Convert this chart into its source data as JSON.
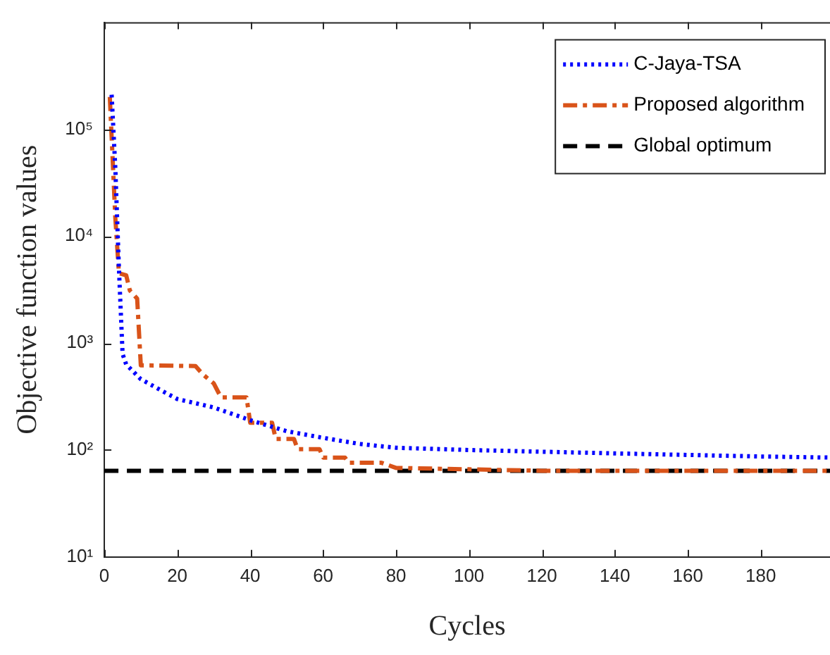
{
  "chart_data": {
    "type": "line",
    "xlabel": "Cycles",
    "ylabel": "Objective function values",
    "log": "y",
    "grid": false,
    "legend": "top right",
    "marker": "none",
    "xlim": [
      0,
      199
    ],
    "xticks": [
      0,
      20,
      40,
      60,
      80,
      100,
      120,
      140,
      160,
      180
    ],
    "ylim": [
      10,
      1000000
    ],
    "yticks": [
      {
        "value": 10,
        "label": "10¹"
      },
      {
        "value": 100,
        "label": "10²"
      },
      {
        "value": 1000,
        "label": "10³"
      },
      {
        "value": 10000,
        "label": "10⁴"
      },
      {
        "value": 100000,
        "label": "10⁵"
      }
    ],
    "series": [
      {
        "name": "C-Jaya-TSA",
        "color": "#0000ff",
        "line_style": "dotted",
        "x": [
          2,
          3,
          4,
          5,
          6,
          10,
          15,
          20,
          30,
          40,
          50,
          60,
          70,
          80,
          100,
          140,
          180,
          199
        ],
        "values": [
          210000,
          44000,
          5000,
          790,
          630,
          460,
          370,
          300,
          250,
          190,
          150,
          130,
          114,
          105,
          100,
          93,
          87,
          85
        ]
      },
      {
        "name": "Proposed algorithm",
        "color": "#d95319",
        "line_style": "dashdot",
        "x": [
          1.5,
          3,
          4,
          6,
          7,
          9,
          10,
          25,
          27,
          30,
          32,
          39,
          40,
          46,
          47,
          52,
          53,
          59,
          60,
          66,
          67,
          76,
          80,
          100,
          120,
          199
        ],
        "values": [
          200000,
          15000,
          4500,
          4300,
          3100,
          2600,
          620,
          610,
          510,
          420,
          310,
          310,
          180,
          180,
          127,
          127,
          102,
          102,
          85,
          85,
          76,
          76,
          68,
          66,
          64,
          64
        ]
      },
      {
        "name": "Global optimum",
        "color": "#000000",
        "line_style": "dashed",
        "x": [
          0,
          199
        ],
        "values": [
          64,
          64
        ]
      }
    ]
  }
}
